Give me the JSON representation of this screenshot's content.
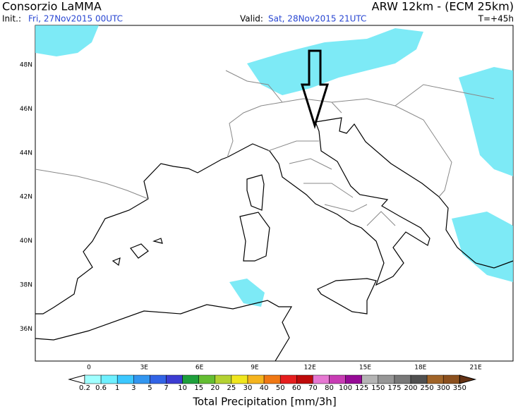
{
  "header": {
    "title": "Consorzio LaMMA",
    "model": "ARW 12km - (ECM 25km)",
    "init_label": "Init.:",
    "init": "Fri, 27Nov2015 00UTC",
    "valid_label": "Valid:",
    "valid": "Sat, 28Nov2015 21UTC",
    "lead_time": "T=+45h"
  },
  "map": {
    "lat_labels": [
      "48N",
      "46N",
      "44N",
      "42N",
      "40N",
      "38N",
      "36N"
    ],
    "lon_labels": [
      "0",
      "3E",
      "6E",
      "9E",
      "12E",
      "15E",
      "18E",
      "21E"
    ]
  },
  "colorbar": {
    "levels": [
      0.2,
      0.6,
      1,
      3,
      5,
      7,
      10,
      15,
      20,
      25,
      30,
      40,
      50,
      60,
      70,
      80,
      100,
      125,
      150,
      175,
      200,
      250,
      300,
      350
    ],
    "colors": [
      "#ffffff",
      "#a0ffff",
      "#6ef0ff",
      "#3cc8ff",
      "#3296f0",
      "#3264e6",
      "#3c3cd2",
      "#1ea03c",
      "#64be32",
      "#b4d232",
      "#f0e61e",
      "#f5b41e",
      "#f07814",
      "#e61e1e",
      "#be0a0a",
      "#e678d2",
      "#c83cb4",
      "#960a96",
      "#b4b4b4",
      "#969696",
      "#787878",
      "#505050",
      "#a06428",
      "#8c501e",
      "#643214"
    ],
    "title": "Total Precipitation [mm/3h]"
  }
}
